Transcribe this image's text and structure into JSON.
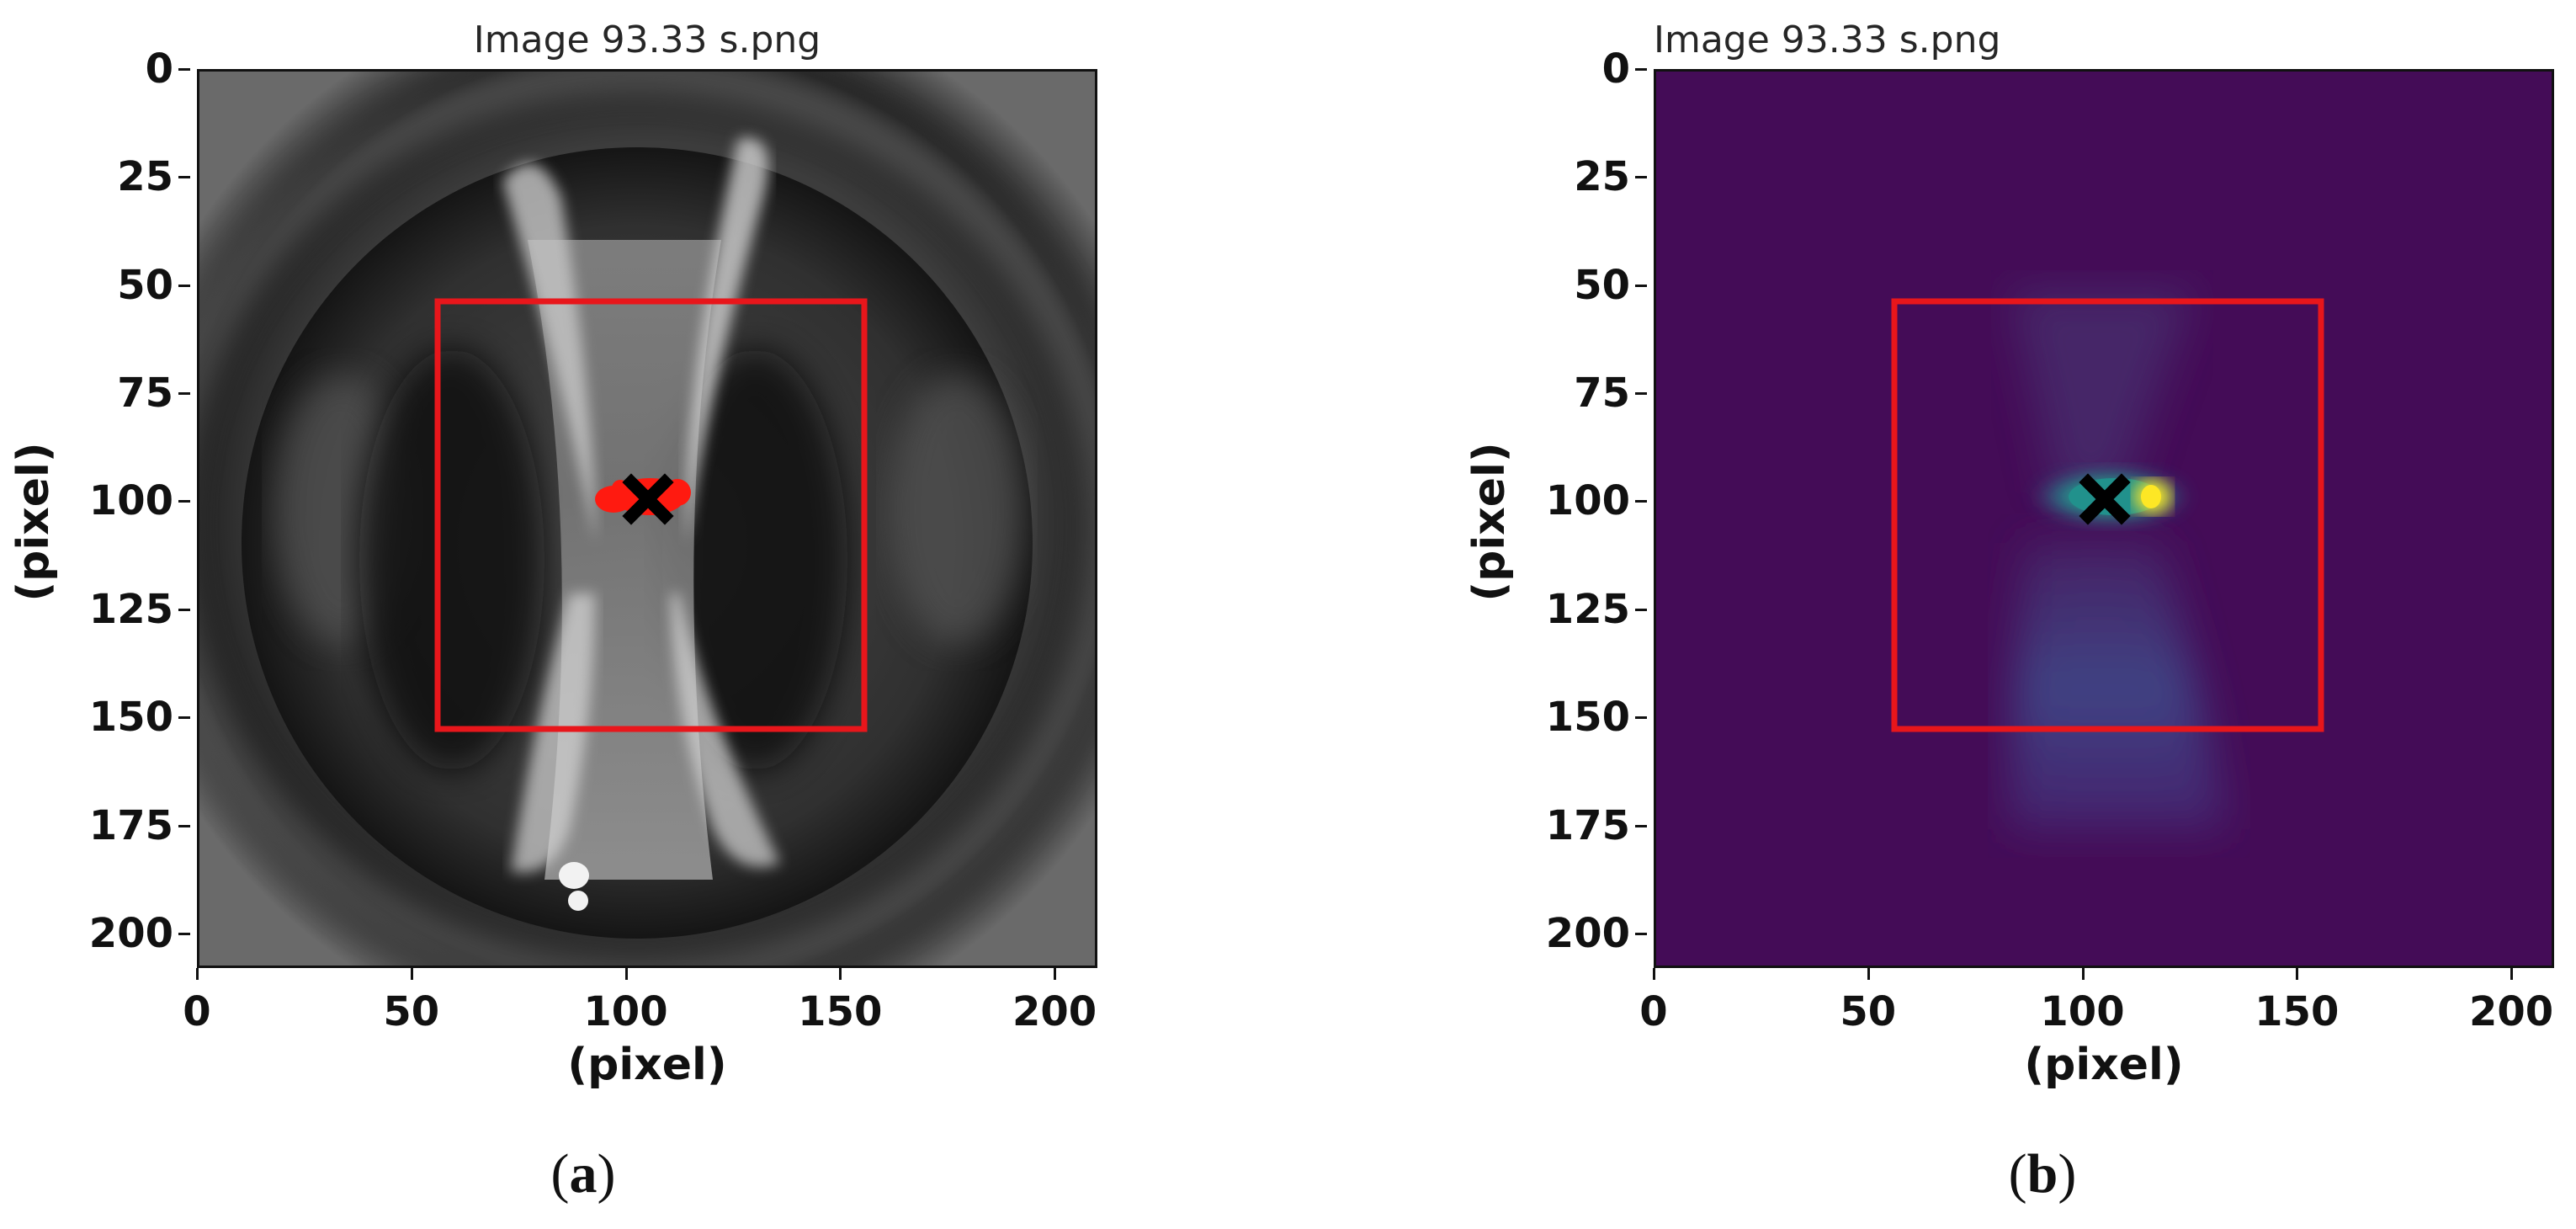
{
  "panels": [
    {
      "id": "a",
      "title": "Image 93.33 s.png",
      "xlabel": "(pixel)",
      "ylabel": "(pixel)",
      "caption_open": "(",
      "caption_letter": "a",
      "caption_close": ")",
      "colormap": "gray",
      "xticks": [
        "0",
        "50",
        "100",
        "150",
        "200"
      ],
      "yticks": [
        "0",
        "25",
        "50",
        "75",
        "100",
        "125",
        "150",
        "175",
        "200"
      ],
      "roi_color": "#e8161b",
      "marker_color": "#000000",
      "blob_color": "#ff1a10"
    },
    {
      "id": "b",
      "title": "Image 93.33 s.png",
      "xlabel": "(pixel)",
      "ylabel": "(pixel)",
      "caption_open": "(",
      "caption_letter": "b",
      "caption_close": ")",
      "colormap": "viridis",
      "xticks": [
        "0",
        "50",
        "100",
        "150",
        "200"
      ],
      "yticks": [
        "0",
        "25",
        "50",
        "75",
        "100",
        "125",
        "150",
        "175",
        "200"
      ],
      "roi_color": "#e8161b",
      "marker_color": "#000000",
      "background_color": "#440c57"
    }
  ],
  "axis_range": {
    "x": [
      0,
      210
    ],
    "y": [
      0,
      208
    ]
  },
  "roi": {
    "x0": 55,
    "x1": 155,
    "y0": 54,
    "y1": 154
  },
  "center_marker": {
    "x": 105,
    "y": 102
  }
}
